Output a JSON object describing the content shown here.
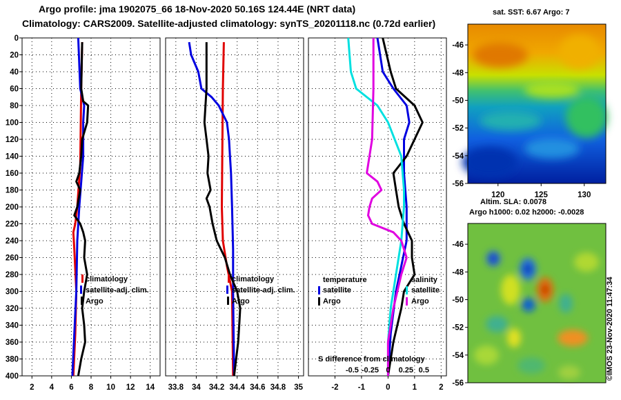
{
  "title_line1": "Argo profile: jma 1902075_66 18-Nov-2020 50.16S 124.44E (NRT data)",
  "title_line2": "Climatology: CARS2009. Satellite-adjusted climatology: synTS_20201118.nc (0.72d earlier)",
  "credit": "©IMOS 23-Nov-2020 11:47:34",
  "colors": {
    "argo": "#000000",
    "climatology": "#e00000",
    "satellite": "#0000e0",
    "temp_diff_sat": "#0000e0",
    "temp_diff_argo": "#000000",
    "sal_diff_sat": "#00e0e0",
    "sal_diff_argo": "#e000e0"
  },
  "chart_data": [
    {
      "type": "line",
      "name": "temperature-profile",
      "ylim": [
        400,
        0
      ],
      "yticks": [
        0,
        20,
        40,
        60,
        80,
        100,
        120,
        140,
        160,
        180,
        200,
        220,
        240,
        260,
        280,
        300,
        320,
        340,
        360,
        380,
        400
      ],
      "xlim": [
        1,
        15
      ],
      "xticks": [
        2,
        4,
        6,
        8,
        10,
        12,
        14
      ],
      "legend": {
        "climatology": "climatology",
        "satellite": "satellite-adj. clim.",
        "argo": "Argo"
      },
      "series": [
        {
          "name": "climatology",
          "depth": [
            5,
            60,
            150,
            200,
            220,
            230,
            250,
            300,
            350,
            400
          ],
          "values": [
            7.1,
            7.0,
            6.9,
            6.6,
            6.4,
            6.2,
            6.3,
            6.5,
            6.4,
            6.2
          ]
        },
        {
          "name": "satellite",
          "depth": [
            0,
            60,
            80,
            100,
            140,
            200,
            240,
            300,
            350,
            400
          ],
          "values": [
            6.7,
            6.9,
            7.3,
            7.2,
            7.2,
            6.8,
            6.6,
            6.5,
            6.3,
            6.1
          ]
        },
        {
          "name": "argo",
          "depth": [
            5,
            60,
            75,
            80,
            100,
            120,
            140,
            160,
            170,
            180,
            200,
            210,
            220,
            230,
            240,
            260,
            280,
            300,
            320,
            340,
            360,
            380,
            400
          ],
          "values": [
            7.1,
            7.0,
            7.2,
            7.7,
            7.6,
            7.1,
            7.0,
            6.8,
            6.5,
            6.9,
            6.6,
            6.3,
            6.9,
            7.2,
            7.4,
            7.3,
            7.6,
            7.3,
            7.1,
            7.3,
            7.4,
            7.0,
            6.7
          ]
        }
      ]
    },
    {
      "type": "line",
      "name": "salinity-profile",
      "ylim": [
        400,
        0
      ],
      "xlim": [
        33.7,
        35.05
      ],
      "xticks": [
        33.8,
        34,
        34.2,
        34.4,
        34.6,
        34.8,
        35
      ],
      "xticklabels": [
        "33.8",
        "34",
        "34.2",
        "34.4",
        "34.6",
        "34.8",
        "35"
      ],
      "legend": {
        "climatology": "climatology",
        "satellite": "satellite-adj. clim.",
        "argo": "Argo"
      },
      "series": [
        {
          "name": "climatology",
          "depth": [
            5,
            60,
            200,
            240,
            270,
            300,
            400
          ],
          "values": [
            34.27,
            34.26,
            34.25,
            34.26,
            34.3,
            34.35,
            34.36
          ]
        },
        {
          "name": "satellite",
          "depth": [
            5,
            20,
            40,
            60,
            70,
            80,
            100,
            120,
            140,
            160,
            200,
            250,
            300,
            400
          ],
          "values": [
            33.93,
            33.95,
            34.02,
            34.05,
            34.15,
            34.22,
            34.3,
            34.32,
            34.33,
            34.34,
            34.35,
            34.36,
            34.36,
            34.37
          ]
        },
        {
          "name": "argo",
          "depth": [
            5,
            60,
            100,
            120,
            140,
            160,
            180,
            190,
            200,
            220,
            240,
            260,
            280,
            300,
            320,
            340,
            360,
            380,
            400
          ],
          "values": [
            34.1,
            34.1,
            34.08,
            34.1,
            34.12,
            34.11,
            34.14,
            34.1,
            34.13,
            34.16,
            34.2,
            34.28,
            34.33,
            34.4,
            34.43,
            34.42,
            34.41,
            34.39,
            34.37
          ]
        }
      ]
    },
    {
      "type": "line",
      "name": "difference-profile",
      "ylim": [
        400,
        0
      ],
      "xlim": [
        -3,
        2.2
      ],
      "xticks": [
        -2,
        -1,
        0,
        1,
        2
      ],
      "xlabel": "S difference from climatology",
      "sal_ticks": [
        -0.5,
        -0.25,
        0,
        0.25,
        0.5
      ],
      "sal_ticklabels": [
        "-0.5",
        "-0.25",
        "0",
        "0.25",
        "0.5"
      ],
      "legend": {
        "temperature": "temperature",
        "salinity": "salinity",
        "satellite": "satellite",
        "argo": "Argo"
      },
      "series": [
        {
          "name": "temp-satellite",
          "depth": [
            0,
            40,
            60,
            80,
            100,
            120,
            160,
            200,
            240,
            300,
            350,
            400
          ],
          "values": [
            -0.4,
            -0.2,
            0.2,
            0.7,
            0.8,
            0.6,
            0.6,
            0.7,
            0.7,
            0.3,
            0.1,
            0.0
          ]
        },
        {
          "name": "temp-argo",
          "depth": [
            0,
            40,
            60,
            80,
            100,
            120,
            140,
            160,
            180,
            200,
            220,
            240,
            260,
            280,
            300,
            320,
            360,
            400
          ],
          "values": [
            -0.2,
            0.1,
            0.3,
            1.0,
            1.3,
            1.0,
            0.7,
            0.2,
            0.3,
            0.4,
            0.6,
            0.9,
            0.9,
            1.0,
            0.6,
            0.5,
            0.2,
            0.0
          ]
        },
        {
          "name": "sal-satellite",
          "depth": [
            0,
            40,
            60,
            80,
            100,
            140,
            180,
            200,
            240,
            280,
            320,
            360,
            400
          ],
          "values": [
            -1.5,
            -1.4,
            -1.2,
            -0.4,
            0.0,
            0.5,
            0.6,
            0.6,
            0.5,
            0.3,
            0.1,
            0.0,
            0.0
          ]
        },
        {
          "name": "sal-argo",
          "depth": [
            0,
            60,
            120,
            160,
            170,
            180,
            190,
            200,
            210,
            220,
            230,
            240,
            260,
            280,
            320,
            360,
            400
          ],
          "values": [
            -0.55,
            -0.55,
            -0.6,
            -0.8,
            -0.4,
            -0.25,
            -0.6,
            -0.7,
            -0.75,
            -0.6,
            0.2,
            0.5,
            0.7,
            0.5,
            0.2,
            0.0,
            0.0
          ]
        }
      ]
    },
    {
      "type": "heatmap",
      "name": "sst-map",
      "title": "sat. SST: 6.67 Argo: 7",
      "xticks": [
        120,
        125,
        130
      ],
      "xlim": [
        116.5,
        132.5
      ],
      "yticks": [
        -46,
        -48,
        -50,
        -52,
        -54,
        -56
      ],
      "ylim": [
        -56,
        -44.5
      ]
    },
    {
      "type": "heatmap",
      "name": "sla-map",
      "title_line1": "Altim. SLA: 0.0078",
      "title_line2": "Argo h1000: 0.02 h2000: -0.0028",
      "yticks": [
        -46,
        -48,
        -50,
        -52,
        -54,
        -56
      ],
      "ylim": [
        -56,
        -44.5
      ]
    }
  ]
}
